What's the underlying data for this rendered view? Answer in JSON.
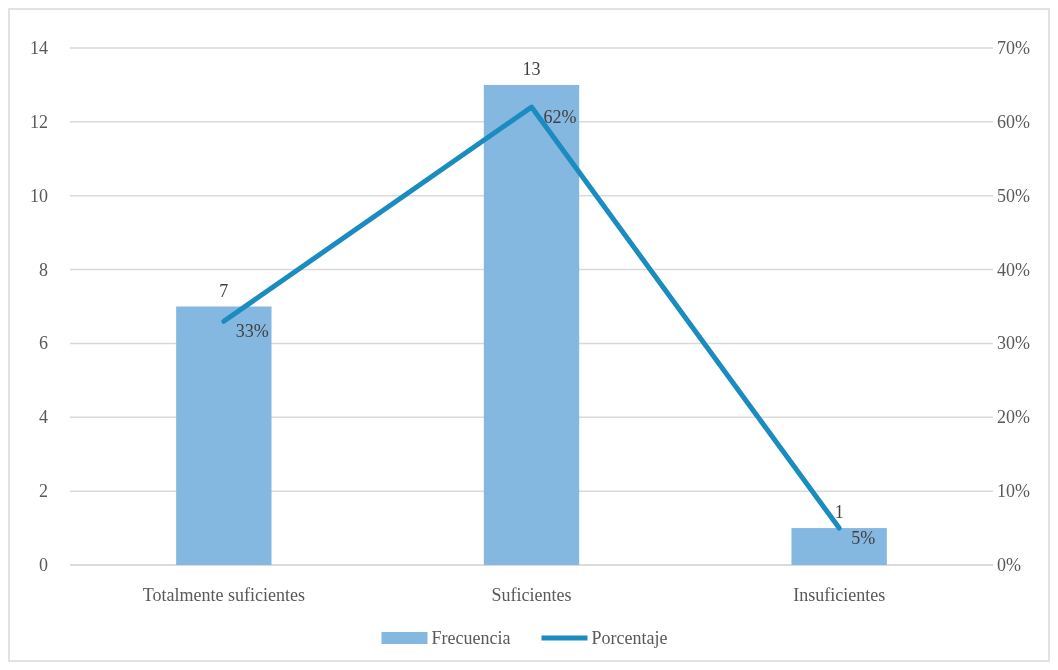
{
  "chart_data": {
    "type": "bar",
    "categories": [
      "Totalmente suficientes",
      "Suficientes",
      "Insuficientes"
    ],
    "series": [
      {
        "name": "Frecuencia",
        "color": "#85b8e0",
        "values": [
          7,
          13,
          1
        ],
        "value_labels": [
          "7",
          "13",
          "1"
        ]
      },
      {
        "name": "Porcentaje",
        "type": "line",
        "axis": "y2",
        "color": "#1a8cbf",
        "values": [
          33,
          62,
          5
        ],
        "value_labels": [
          "33%",
          "62%",
          "5%"
        ]
      }
    ],
    "ylim": [
      0,
      14
    ],
    "yticks": [
      0,
      2,
      4,
      6,
      8,
      10,
      12,
      14
    ],
    "y2lim": [
      0,
      70
    ],
    "y2ticks": [
      {
        "value": 0,
        "label": "0%"
      },
      {
        "value": 10,
        "label": "10%"
      },
      {
        "value": 20,
        "label": "20%"
      },
      {
        "value": 30,
        "label": "30%"
      },
      {
        "value": 40,
        "label": "40%"
      },
      {
        "value": 50,
        "label": "50%"
      },
      {
        "value": 60,
        "label": "60%"
      },
      {
        "value": 70,
        "label": "70%"
      }
    ],
    "grid": "y",
    "legend": "bottom",
    "marker": "none",
    "line_style": "solid"
  }
}
